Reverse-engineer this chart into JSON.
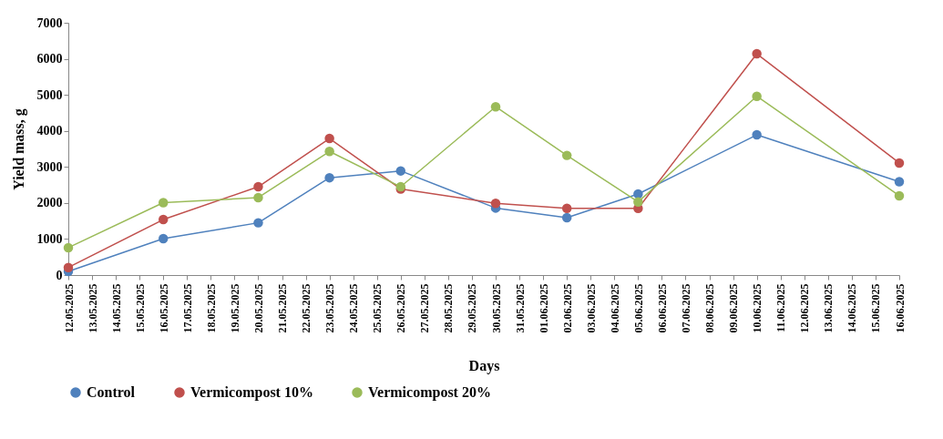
{
  "chart_data": {
    "type": "line",
    "xlabel": "Days",
    "ylabel": "Yield mass, g",
    "x": [
      "2025-05-12",
      "2025-05-16",
      "2025-05-20",
      "2025-05-23",
      "2025-05-26",
      "2025-05-30",
      "2025-06-02",
      "2025-06-05",
      "2025-06-10",
      "2025-06-16"
    ],
    "series": [
      {
        "name": "Control",
        "color": "#4f81bd",
        "values": [
          100,
          1010,
          1450,
          2700,
          2890,
          1860,
          1590,
          2250,
          3890,
          2590
        ]
      },
      {
        "name": "Vermicompost 10%",
        "color": "#c0504d",
        "values": [
          210,
          1540,
          2450,
          3790,
          2390,
          1990,
          1850,
          1850,
          6140,
          3110
        ]
      },
      {
        "name": "Vermicompost 20%",
        "color": "#9bbb59",
        "values": [
          760,
          2010,
          2150,
          3430,
          2450,
          4670,
          3320,
          2030,
          4960,
          2200
        ]
      }
    ],
    "xlim": [
      "2025-05-12",
      "2025-06-16"
    ],
    "xticks": [
      {
        "value": "2025-05-12",
        "label": "12.05.2025"
      },
      {
        "value": "2025-05-13",
        "label": "13.05.2025"
      },
      {
        "value": "2025-05-14",
        "label": "14.05.2025"
      },
      {
        "value": "2025-05-15",
        "label": "15.05.2025"
      },
      {
        "value": "2025-05-16",
        "label": "16.05.2025"
      },
      {
        "value": "2025-05-17",
        "label": "17.05.2025"
      },
      {
        "value": "2025-05-18",
        "label": "18.05.2025"
      },
      {
        "value": "2025-05-19",
        "label": "19.05.2025"
      },
      {
        "value": "2025-05-20",
        "label": "20.05.2025"
      },
      {
        "value": "2025-05-21",
        "label": "21.05.2025"
      },
      {
        "value": "2025-05-22",
        "label": "22.05.2025"
      },
      {
        "value": "2025-05-23",
        "label": "23.05.2025"
      },
      {
        "value": "2025-05-24",
        "label": "24.05.2025"
      },
      {
        "value": "2025-05-25",
        "label": "25.05.2025"
      },
      {
        "value": "2025-05-26",
        "label": "26.05.2025"
      },
      {
        "value": "2025-05-27",
        "label": "27.05.2025"
      },
      {
        "value": "2025-05-28",
        "label": "28.05.2025"
      },
      {
        "value": "2025-05-29",
        "label": "29.05.2025"
      },
      {
        "value": "2025-05-30",
        "label": "30.05.2025"
      },
      {
        "value": "2025-05-31",
        "label": "31.05.2025"
      },
      {
        "value": "2025-06-01",
        "label": "01.06.2025"
      },
      {
        "value": "2025-06-02",
        "label": "02.06.2025"
      },
      {
        "value": "2025-06-03",
        "label": "03.06.2025"
      },
      {
        "value": "2025-06-04",
        "label": "04.06.2025"
      },
      {
        "value": "2025-06-05",
        "label": "05.06.2025"
      },
      {
        "value": "2025-06-06",
        "label": "06.06.2025"
      },
      {
        "value": "2025-06-07",
        "label": "07.06.2025"
      },
      {
        "value": "2025-06-08",
        "label": "08.06.2025"
      },
      {
        "value": "2025-06-09",
        "label": "09.06.2025"
      },
      {
        "value": "2025-06-10",
        "label": "10.06.2025"
      },
      {
        "value": "2025-06-11",
        "label": "11.06.2025"
      },
      {
        "value": "2025-06-12",
        "label": "12.06.2025"
      },
      {
        "value": "2025-06-13",
        "label": "13.06.2025"
      },
      {
        "value": "2025-06-14",
        "label": "14.06.2025"
      },
      {
        "value": "2025-06-15",
        "label": "15.06.2025"
      },
      {
        "value": "2025-06-16",
        "label": "16.06.2025"
      }
    ],
    "ylim": [
      0,
      7000
    ],
    "yticks": [
      0,
      1000,
      2000,
      3000,
      4000,
      5000,
      6000,
      7000
    ],
    "grid": false,
    "legend": "bottom",
    "marker": "circle",
    "line_style": "solid"
  }
}
